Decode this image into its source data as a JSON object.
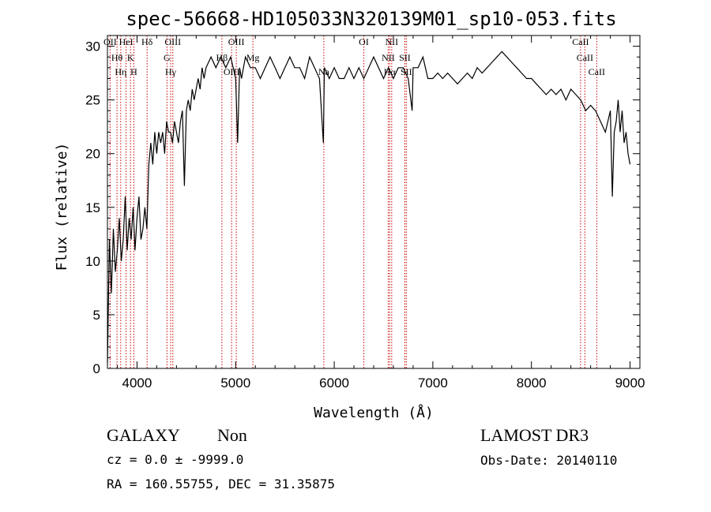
{
  "chart_data": {
    "type": "line",
    "title": "spec-56668-HD105033N320139M01_sp10-053.fits",
    "xlabel": "Wavelength (Å)",
    "ylabel": "Flux (relative)",
    "xlim": [
      3700,
      9100
    ],
    "ylim": [
      0,
      31
    ],
    "x_ticks": [
      4000,
      5000,
      6000,
      7000,
      8000,
      9000
    ],
    "y_ticks": [
      0,
      5,
      10,
      15,
      20,
      25,
      30
    ],
    "grid": false,
    "line_color": "#000000",
    "marker_color": "#cc0000",
    "series": [
      {
        "x": [
          3700,
          3720,
          3740,
          3760,
          3780,
          3800,
          3820,
          3840,
          3860,
          3880,
          3900,
          3920,
          3940,
          3960,
          3980,
          4000,
          4020,
          4040,
          4060,
          4080,
          4100,
          4120,
          4140,
          4160,
          4180,
          4200,
          4220,
          4240,
          4260,
          4280,
          4300,
          4320,
          4340,
          4360,
          4380,
          4400,
          4420,
          4440,
          4460,
          4480,
          4500,
          4520,
          4540,
          4560,
          4580,
          4600,
          4620,
          4640,
          4660,
          4680,
          4700,
          4750,
          4800,
          4850,
          4900,
          4950,
          5000,
          5020,
          5040,
          5060,
          5100,
          5150,
          5200,
          5250,
          5300,
          5350,
          5400,
          5450,
          5500,
          5550,
          5600,
          5650,
          5700,
          5750,
          5800,
          5850,
          5890,
          5900,
          5950,
          6000,
          6050,
          6100,
          6150,
          6200,
          6250,
          6300,
          6350,
          6400,
          6450,
          6500,
          6550,
          6600,
          6650,
          6700,
          6750,
          6790,
          6800,
          6850,
          6900,
          6950,
          7000,
          7050,
          7100,
          7150,
          7200,
          7250,
          7300,
          7350,
          7400,
          7450,
          7500,
          7550,
          7600,
          7650,
          7700,
          7750,
          7800,
          7850,
          7900,
          7950,
          8000,
          8050,
          8100,
          8150,
          8200,
          8250,
          8300,
          8350,
          8400,
          8450,
          8500,
          8550,
          8600,
          8650,
          8700,
          8750,
          8800,
          8820,
          8840,
          8860,
          8880,
          8900,
          8920,
          8940,
          8960,
          8980,
          9000
        ],
        "y": [
          0.5,
          12,
          7,
          13,
          9,
          11,
          14,
          10,
          12,
          16,
          11,
          14,
          12,
          15,
          11,
          14,
          16,
          12,
          13,
          15,
          13,
          19,
          21,
          19,
          22,
          20,
          22,
          21,
          22,
          20,
          23,
          22,
          22,
          21,
          23,
          22,
          21,
          23,
          24,
          17,
          24,
          25,
          24,
          26,
          25,
          26,
          27,
          26,
          28,
          27,
          28,
          29,
          28,
          29,
          28,
          29,
          27,
          21,
          28,
          27,
          29,
          28,
          28,
          27,
          28,
          29,
          28,
          27,
          28,
          29,
          28,
          28,
          27,
          29,
          28,
          27,
          21,
          28,
          27,
          28,
          27,
          27,
          28,
          27,
          28,
          27,
          28,
          29,
          28,
          27,
          28,
          27,
          28,
          28,
          27,
          24,
          28,
          28,
          29,
          27,
          27,
          27.5,
          27,
          27.5,
          27,
          26.5,
          27,
          27.5,
          27,
          28,
          27.5,
          28,
          28.5,
          29,
          29.5,
          29,
          28.5,
          28,
          27.5,
          27,
          27,
          26.5,
          26,
          25.5,
          26,
          25.5,
          26,
          25,
          26,
          25.5,
          25,
          24,
          24.5,
          24,
          23,
          22,
          24,
          16,
          22,
          23,
          25,
          22,
          24,
          21,
          22,
          20,
          19
        ]
      }
    ],
    "emission_lines": [
      {
        "label": "OII",
        "x": 3727
      },
      {
        "label": "Hθ",
        "x": 3797
      },
      {
        "label": "Hη",
        "x": 3835
      },
      {
        "label": "HeI",
        "x": 3889
      },
      {
        "label": "K",
        "x": 3934
      },
      {
        "label": "H",
        "x": 3968
      },
      {
        "label": "Hδ",
        "x": 4102
      },
      {
        "label": "G",
        "x": 4304
      },
      {
        "label": "Hγ",
        "x": 4341
      },
      {
        "label": "OIII",
        "x": 4363
      },
      {
        "label": "Hβ",
        "x": 4861
      },
      {
        "label": "OIII",
        "x": 4959
      },
      {
        "label": "OIII",
        "x": 5007
      },
      {
        "label": "Mg",
        "x": 5175
      },
      {
        "label": "Na",
        "x": 5894
      },
      {
        "label": "OI",
        "x": 6300
      },
      {
        "label": "NII",
        "x": 6548
      },
      {
        "label": "Hα",
        "x": 6563
      },
      {
        "label": "NII",
        "x": 6583
      },
      {
        "label": "SII",
        "x": 6716
      },
      {
        "label": "SII",
        "x": 6731
      },
      {
        "label": "CaII",
        "x": 8498
      },
      {
        "label": "CaII",
        "x": 8542
      },
      {
        "label": "CaII",
        "x": 8662
      }
    ]
  },
  "info": {
    "class": "GALAXY",
    "subclass": "Non",
    "cz": "cz = 0.0 ± -9999.0",
    "radec": "RA = 160.55755, DEC =  31.35875",
    "survey": "LAMOST DR3",
    "obsdate": "Obs-Date: 20140110"
  }
}
